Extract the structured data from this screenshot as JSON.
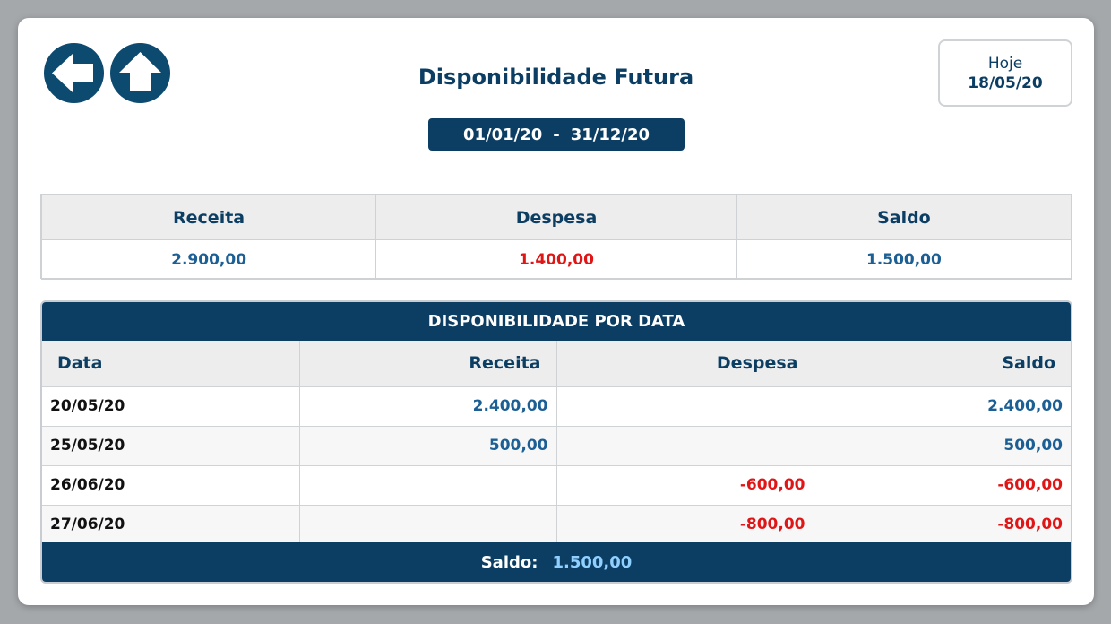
{
  "page": {
    "title": "Disponibilidade Futura",
    "today_label": "Hoje",
    "today_value": "18/05/20",
    "period_start": "01/01/20",
    "period_separator": "-",
    "period_end": "31/12/20"
  },
  "nav": {
    "back_icon": "arrow-left-icon",
    "home_icon": "arrow-up-icon"
  },
  "summary": {
    "headers": [
      "Receita",
      "Despesa",
      "Saldo"
    ],
    "values": [
      "2.900,00",
      "1.400,00",
      "1.500,00"
    ]
  },
  "detail": {
    "title": "DISPONIBILIDADE POR DATA",
    "columns": [
      "Data",
      "Receita",
      "Despesa",
      "Saldo"
    ],
    "rows": [
      {
        "data": "20/05/20",
        "receita": "2.400,00",
        "despesa": "",
        "saldo": "2.400,00"
      },
      {
        "data": "25/05/20",
        "receita": "500,00",
        "despesa": "",
        "saldo": "500,00"
      },
      {
        "data": "26/06/20",
        "receita": "",
        "despesa": "-600,00",
        "saldo": "-600,00"
      },
      {
        "data": "27/06/20",
        "receita": "",
        "despesa": "-800,00",
        "saldo": "-800,00"
      }
    ],
    "footer_label": "Saldo:",
    "footer_value": "1.500,00"
  },
  "colors": {
    "primary": "#0c3e63",
    "income": "#1c5f94",
    "expense": "#e01616",
    "footer_value": "#8fd0ff"
  }
}
